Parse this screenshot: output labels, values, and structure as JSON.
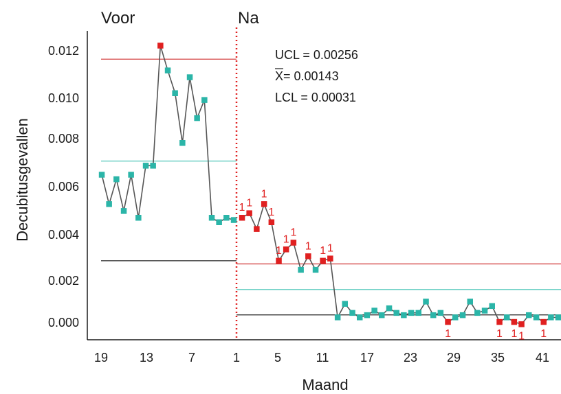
{
  "chart_data": {
    "type": "line",
    "chart_subtype": "statistical process control chart",
    "xlabel": "Maand",
    "ylabel": "Decubitusgevallen",
    "ylim": [
      -0.0006,
      0.0126
    ],
    "yticks": [
      "0.012",
      "0.010",
      "0.008",
      "0.006",
      "0.004",
      "0.002",
      "0.000"
    ],
    "ytick_values": [
      0.012,
      0.01,
      0.008,
      0.006,
      0.004,
      0.002,
      0.0
    ],
    "xticks": [
      "19",
      "13",
      "7",
      "1",
      "5",
      "11",
      "17",
      "23",
      "29",
      "35",
      "41"
    ],
    "phases": [
      {
        "label": "Voor",
        "x_start": 19,
        "x_end": 1
      },
      {
        "label": "Na",
        "x_start": 1,
        "x_end": 44
      }
    ],
    "stats_text": {
      "ucl": "UCL = 0.00256",
      "mean_prefix": "X",
      "mean_value": " = 0.00143",
      "lcl": "LCL = 0.00031"
    },
    "control_limits": {
      "before": {
        "ucl": 0.0116,
        "center": 0.0071,
        "lcl": 0.0027
      },
      "after": {
        "ucl": 0.00256,
        "center": 0.00143,
        "lcl": 0.00031
      }
    },
    "colors": {
      "in_control": "#2bb5a8",
      "out_of_control": "#e02020",
      "line": "#555555",
      "ucl": "#d03030",
      "center": "#3cc0b0",
      "lcl": "#222222",
      "phase_divider": "#e02020"
    },
    "flag_label": "1",
    "series_before": [
      {
        "y": 0.0065,
        "flag": false
      },
      {
        "y": 0.0052,
        "flag": false
      },
      {
        "y": 0.0063,
        "flag": false
      },
      {
        "y": 0.0049,
        "flag": false
      },
      {
        "y": 0.0065,
        "flag": false
      },
      {
        "y": 0.0046,
        "flag": false
      },
      {
        "y": 0.0069,
        "flag": false
      },
      {
        "y": 0.0069,
        "flag": false
      },
      {
        "y": 0.0122,
        "flag": true
      },
      {
        "y": 0.0111,
        "flag": false
      },
      {
        "y": 0.0101,
        "flag": false
      },
      {
        "y": 0.0079,
        "flag": false
      },
      {
        "y": 0.0108,
        "flag": false
      },
      {
        "y": 0.009,
        "flag": false
      },
      {
        "y": 0.0098,
        "flag": false
      },
      {
        "y": 0.0046,
        "flag": false
      },
      {
        "y": 0.0044,
        "flag": false
      },
      {
        "y": 0.0046,
        "flag": false
      },
      {
        "y": 0.0045,
        "flag": false
      }
    ],
    "series_after": [
      {
        "x": 1,
        "y": 0.0046,
        "flag": true,
        "flag_label": "above"
      },
      {
        "x": 2,
        "y": 0.0048,
        "flag": true,
        "flag_label": "above"
      },
      {
        "x": 3,
        "y": 0.0041,
        "flag": true,
        "flag_label": "none"
      },
      {
        "x": 4,
        "y": 0.0052,
        "flag": true,
        "flag_label": "above"
      },
      {
        "x": 5,
        "y": 0.0044,
        "flag": true,
        "flag_label": "above"
      },
      {
        "x": 6,
        "y": 0.0027,
        "flag": true,
        "flag_label": "above"
      },
      {
        "x": 7,
        "y": 0.0032,
        "flag": true,
        "flag_label": "above"
      },
      {
        "x": 8,
        "y": 0.0035,
        "flag": true,
        "flag_label": "above"
      },
      {
        "x": 9,
        "y": 0.0023,
        "flag": false,
        "flag_label": "none"
      },
      {
        "x": 10,
        "y": 0.0029,
        "flag": true,
        "flag_label": "above"
      },
      {
        "x": 11,
        "y": 0.0023,
        "flag": false,
        "flag_label": "none"
      },
      {
        "x": 12,
        "y": 0.0027,
        "flag": true,
        "flag_label": "above"
      },
      {
        "x": 13,
        "y": 0.0028,
        "flag": true,
        "flag_label": "above"
      },
      {
        "x": 14,
        "y": 0.0002,
        "flag": false,
        "flag_label": "none"
      },
      {
        "x": 15,
        "y": 0.0008,
        "flag": false,
        "flag_label": "none"
      },
      {
        "x": 16,
        "y": 0.0004,
        "flag": false,
        "flag_label": "none"
      },
      {
        "x": 17,
        "y": 0.0002,
        "flag": false,
        "flag_label": "none"
      },
      {
        "x": 18,
        "y": 0.0003,
        "flag": false,
        "flag_label": "none"
      },
      {
        "x": 19,
        "y": 0.0005,
        "flag": false,
        "flag_label": "none"
      },
      {
        "x": 20,
        "y": 0.0003,
        "flag": false,
        "flag_label": "none"
      },
      {
        "x": 21,
        "y": 0.0006,
        "flag": false,
        "flag_label": "none"
      },
      {
        "x": 22,
        "y": 0.0004,
        "flag": false,
        "flag_label": "none"
      },
      {
        "x": 23,
        "y": 0.0003,
        "flag": false,
        "flag_label": "none"
      },
      {
        "x": 24,
        "y": 0.0004,
        "flag": false,
        "flag_label": "none"
      },
      {
        "x": 25,
        "y": 0.0004,
        "flag": false,
        "flag_label": "none"
      },
      {
        "x": 26,
        "y": 0.0009,
        "flag": false,
        "flag_label": "none"
      },
      {
        "x": 27,
        "y": 0.0003,
        "flag": false,
        "flag_label": "none"
      },
      {
        "x": 28,
        "y": 0.0004,
        "flag": false,
        "flag_label": "none"
      },
      {
        "x": 29,
        "y": 0.0,
        "flag": true,
        "flag_label": "below"
      },
      {
        "x": 30,
        "y": 0.0002,
        "flag": false,
        "flag_label": "none"
      },
      {
        "x": 31,
        "y": 0.0003,
        "flag": false,
        "flag_label": "none"
      },
      {
        "x": 32,
        "y": 0.0009,
        "flag": false,
        "flag_label": "none"
      },
      {
        "x": 33,
        "y": 0.0004,
        "flag": false,
        "flag_label": "none"
      },
      {
        "x": 34,
        "y": 0.0005,
        "flag": false,
        "flag_label": "none"
      },
      {
        "x": 35,
        "y": 0.0007,
        "flag": false,
        "flag_label": "none"
      },
      {
        "x": 36,
        "y": 0.0,
        "flag": true,
        "flag_label": "below"
      },
      {
        "x": 37,
        "y": 0.0002,
        "flag": false,
        "flag_label": "none"
      },
      {
        "x": 38,
        "y": 0.0,
        "flag": true,
        "flag_label": "below"
      },
      {
        "x": 39,
        "y": -0.0001,
        "flag": true,
        "flag_label": "below"
      },
      {
        "x": 40,
        "y": 0.0003,
        "flag": false,
        "flag_label": "none"
      },
      {
        "x": 41,
        "y": 0.0002,
        "flag": false,
        "flag_label": "none"
      },
      {
        "x": 42,
        "y": 0.0,
        "flag": true,
        "flag_label": "below"
      },
      {
        "x": 43,
        "y": 0.0002,
        "flag": false,
        "flag_label": "none"
      },
      {
        "x": 44,
        "y": 0.0002,
        "flag": false,
        "flag_label": "none"
      },
      {
        "x": 45,
        "y": 0.0004,
        "flag": false,
        "flag_label": "none"
      }
    ]
  }
}
